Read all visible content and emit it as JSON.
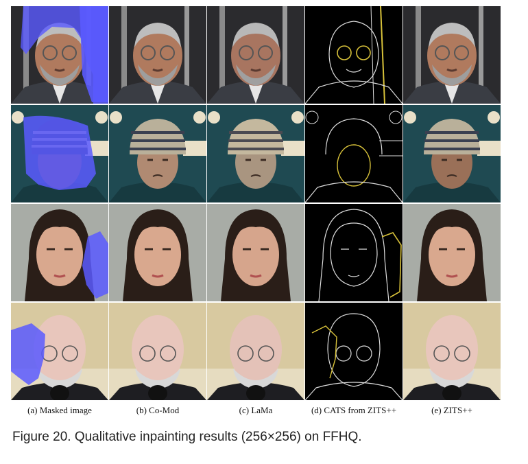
{
  "columns": [
    {
      "label": "(a) Masked image"
    },
    {
      "label": "(b) Co-Mod"
    },
    {
      "label": "(c) LaMa"
    },
    {
      "label": "(d) CATS from ZITS++"
    },
    {
      "label": "(e) ZITS++"
    }
  ],
  "figure_caption": "Figure 20. Qualitative inpainting results (256×256) on FFHQ.",
  "colors": {
    "mask": "#5a5aff",
    "edge_yellow": "#d8c23a"
  }
}
